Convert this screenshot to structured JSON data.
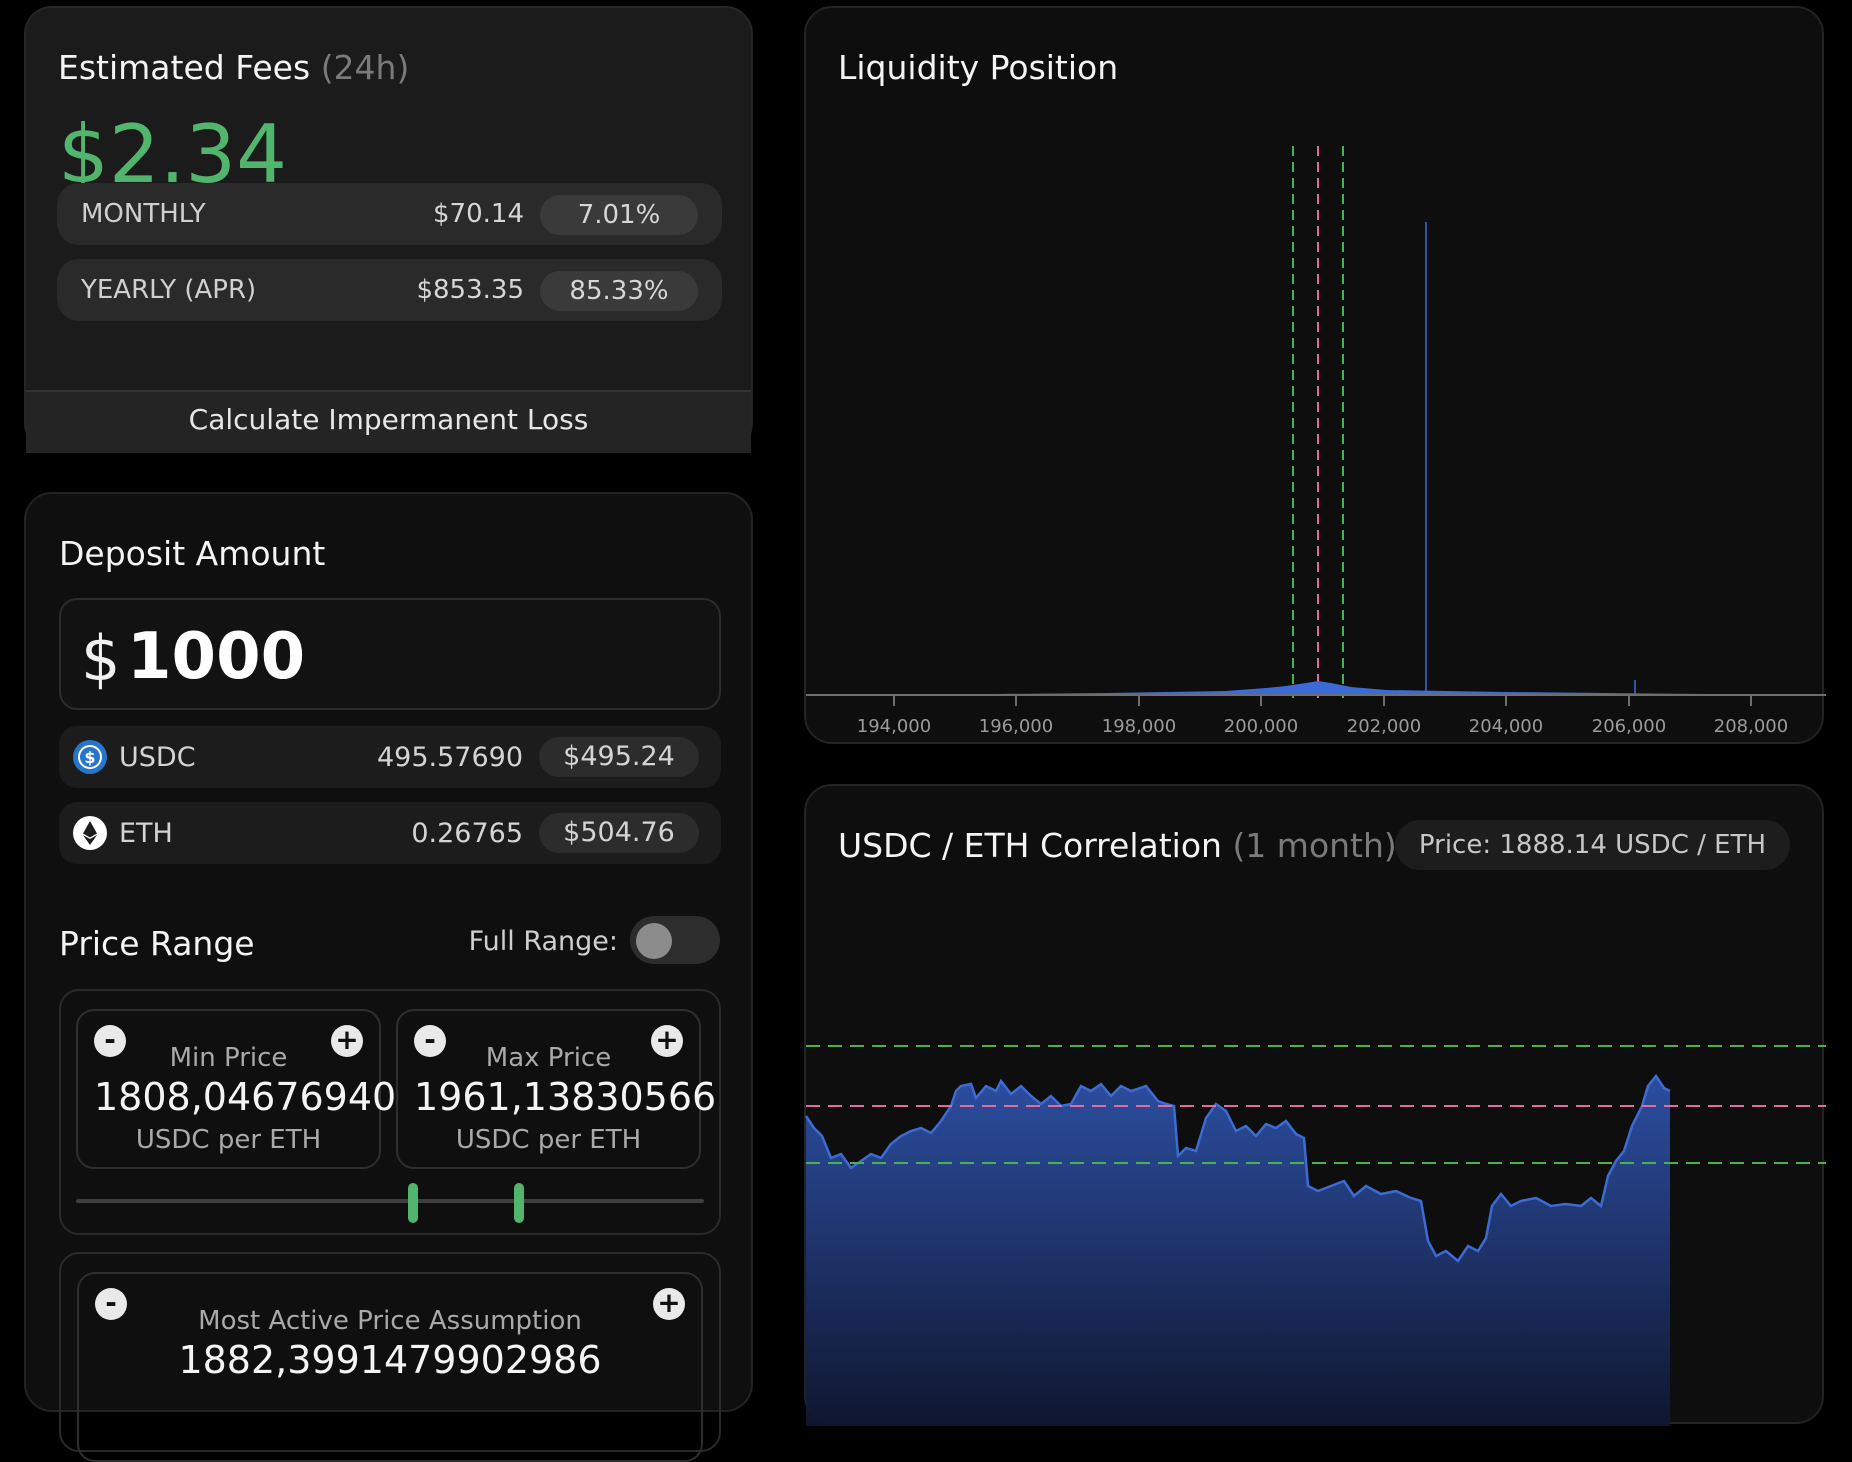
{
  "fees": {
    "title": "Estimated Fees",
    "title_period": "(24h)",
    "amount_symbol": "$",
    "amount": "2.34",
    "rows": [
      {
        "label": "MONTHLY",
        "value": "$70.14",
        "pct": "7.01%"
      },
      {
        "label": "YEARLY (APR)",
        "value": "$853.35",
        "pct": "85.33%"
      }
    ],
    "il_button": "Calculate Impermanent Loss"
  },
  "deposit": {
    "title": "Deposit Amount",
    "currency": "$",
    "amount": "1000",
    "tokens": [
      {
        "name": "USDC",
        "amount": "495.57690",
        "usd": "$495.24",
        "icon": "usdc-icon",
        "color": "#2775ca"
      },
      {
        "name": "ETH",
        "amount": "0.26765",
        "usd": "$504.76",
        "icon": "eth-icon",
        "color": "#ffffff"
      }
    ]
  },
  "price_range": {
    "title": "Price Range",
    "full_range_label": "Full Range:",
    "full_range_enabled": false,
    "min": {
      "title": "Min Price",
      "value": "1808,046769400",
      "unit": "USDC per ETH"
    },
    "max": {
      "title": "Max Price",
      "value": "1961,13830566",
      "unit": "USDC per ETH"
    },
    "decrement_symbol": "-",
    "increment_symbol": "+"
  },
  "assumption": {
    "title": "Most Active Price Assumption",
    "value": "1882,3991479902986"
  },
  "liquidity": {
    "title": "Liquidity Position",
    "x_ticks": [
      "194,000",
      "196,000",
      "198,000",
      "200,000",
      "202,000",
      "204,000",
      "206,000",
      "208,000"
    ]
  },
  "correlation": {
    "title": "USDC / ETH Correlation",
    "period": "(1 month)",
    "price_pill": "Price: 1888.14 USDC / ETH"
  },
  "colors": {
    "accent_green": "#52b56e",
    "range_line_green": "#4caf50",
    "current_price_pink": "#e56b9c",
    "series_blue": "#3d6bd6"
  }
}
